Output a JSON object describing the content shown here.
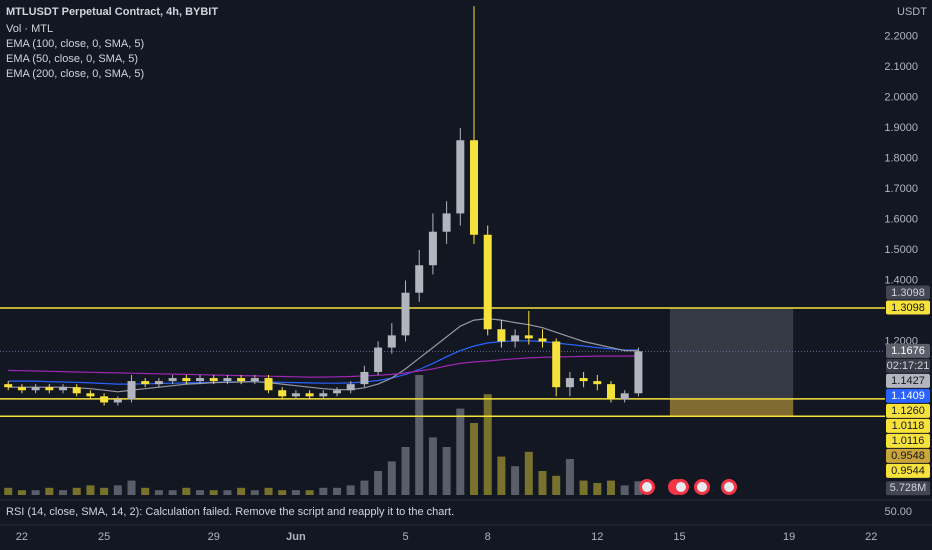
{
  "chart_data": {
    "type": "candlestick",
    "title": "MTLUSDT Perpetual Contract, 4h, BYBIT",
    "unit": "USDT",
    "x": [
      21.5,
      22,
      22.5,
      23,
      23.5,
      24,
      24.5,
      25,
      25.5,
      26,
      26.5,
      27,
      27.5,
      28,
      28.5,
      29,
      29.5,
      30,
      30.5,
      31,
      31.5,
      32,
      32.5,
      33,
      33.5,
      34,
      34.5,
      35,
      35.5,
      36,
      36.5,
      37,
      37.5,
      38,
      38.5,
      39,
      39.5,
      40,
      40.5,
      41,
      41.5,
      42,
      42.5,
      43,
      43.5,
      44,
      44.5
    ],
    "open": [
      1.06,
      1.05,
      1.04,
      1.05,
      1.04,
      1.05,
      1.03,
      1.02,
      1.0,
      1.01,
      1.07,
      1.06,
      1.07,
      1.08,
      1.07,
      1.08,
      1.07,
      1.08,
      1.07,
      1.08,
      1.04,
      1.02,
      1.03,
      1.02,
      1.03,
      1.04,
      1.06,
      1.1,
      1.18,
      1.22,
      1.36,
      1.45,
      1.56,
      1.62,
      1.86,
      1.55,
      1.24,
      1.2,
      1.22,
      1.21,
      1.2,
      1.05,
      1.08,
      1.07,
      1.06,
      1.01,
      1.03
    ],
    "close": [
      1.05,
      1.04,
      1.05,
      1.04,
      1.05,
      1.03,
      1.02,
      1.0,
      1.01,
      1.07,
      1.06,
      1.07,
      1.08,
      1.07,
      1.08,
      1.07,
      1.08,
      1.07,
      1.08,
      1.04,
      1.02,
      1.03,
      1.02,
      1.03,
      1.04,
      1.06,
      1.1,
      1.18,
      1.22,
      1.36,
      1.45,
      1.56,
      1.62,
      1.86,
      1.55,
      1.24,
      1.2,
      1.22,
      1.21,
      1.2,
      1.05,
      1.08,
      1.07,
      1.06,
      1.01,
      1.03,
      1.1676
    ],
    "high": [
      1.07,
      1.06,
      1.06,
      1.06,
      1.06,
      1.06,
      1.04,
      1.03,
      1.02,
      1.09,
      1.08,
      1.08,
      1.09,
      1.09,
      1.09,
      1.09,
      1.09,
      1.09,
      1.09,
      1.09,
      1.05,
      1.04,
      1.04,
      1.04,
      1.05,
      1.07,
      1.12,
      1.2,
      1.26,
      1.4,
      1.5,
      1.62,
      1.66,
      1.9,
      2.3,
      1.58,
      1.27,
      1.24,
      1.3,
      1.24,
      1.21,
      1.1,
      1.1,
      1.09,
      1.07,
      1.04,
      1.18
    ],
    "low": [
      1.04,
      1.03,
      1.03,
      1.03,
      1.03,
      1.02,
      1.01,
      0.99,
      0.99,
      1.0,
      1.05,
      1.05,
      1.06,
      1.06,
      1.06,
      1.06,
      1.06,
      1.06,
      1.06,
      1.03,
      1.01,
      1.01,
      1.01,
      1.01,
      1.02,
      1.03,
      1.05,
      1.09,
      1.16,
      1.2,
      1.33,
      1.42,
      1.52,
      1.58,
      1.52,
      1.22,
      1.18,
      1.18,
      1.19,
      1.18,
      1.02,
      1.02,
      1.05,
      1.04,
      1.0,
      1.0,
      1.02
    ],
    "up_color": "#b2b5be",
    "down_color": "#f7e23c",
    "volume": {
      "name": "Vol · MTL",
      "axis": "y2",
      "values": [
        3,
        2,
        2,
        3,
        2,
        3,
        4,
        3,
        4,
        6,
        3,
        2,
        2,
        3,
        2,
        2,
        2,
        3,
        2,
        3,
        2,
        2,
        2,
        3,
        3,
        4,
        6,
        10,
        14,
        20,
        50,
        24,
        20,
        36,
        30,
        42,
        16,
        12,
        18,
        10,
        8,
        15,
        6,
        5,
        6,
        4,
        5.728
      ]
    },
    "series": [
      {
        "name": "EMA (100, close, 0, SMA, 5)",
        "color": "#2962ff",
        "values": [
          1.07,
          1.07,
          1.07,
          1.068,
          1.067,
          1.066,
          1.064,
          1.062,
          1.06,
          1.06,
          1.061,
          1.062,
          1.063,
          1.064,
          1.065,
          1.066,
          1.067,
          1.068,
          1.068,
          1.067,
          1.066,
          1.065,
          1.064,
          1.063,
          1.063,
          1.064,
          1.067,
          1.072,
          1.08,
          1.092,
          1.108,
          1.128,
          1.15,
          1.17,
          1.185,
          1.195,
          1.2,
          1.202,
          1.202,
          1.2,
          1.195,
          1.19,
          1.185,
          1.18,
          1.176,
          1.172,
          1.172
        ]
      },
      {
        "name": "EMA (50, close, 0, SMA, 5)",
        "color": "#9598a1",
        "values": [
          1.05,
          1.05,
          1.05,
          1.05,
          1.05,
          1.048,
          1.045,
          1.04,
          1.035,
          1.04,
          1.045,
          1.05,
          1.055,
          1.06,
          1.062,
          1.065,
          1.066,
          1.067,
          1.068,
          1.065,
          1.06,
          1.055,
          1.05,
          1.045,
          1.042,
          1.042,
          1.048,
          1.06,
          1.08,
          1.11,
          1.145,
          1.18,
          1.215,
          1.25,
          1.27,
          1.275,
          1.27,
          1.262,
          1.255,
          1.245,
          1.23,
          1.215,
          1.2,
          1.19,
          1.18,
          1.17,
          1.17
        ]
      },
      {
        "name": "EMA (200, close, 0, SMA, 5)",
        "color": "#9c27b0",
        "values": [
          1.105,
          1.104,
          1.103,
          1.102,
          1.101,
          1.1,
          1.099,
          1.098,
          1.097,
          1.096,
          1.095,
          1.094,
          1.093,
          1.092,
          1.091,
          1.09,
          1.089,
          1.088,
          1.087,
          1.086,
          1.085,
          1.084,
          1.083,
          1.083,
          1.084,
          1.085,
          1.087,
          1.089,
          1.092,
          1.097,
          1.103,
          1.11,
          1.12,
          1.128,
          1.133,
          1.136,
          1.14,
          1.143,
          1.146,
          1.148,
          1.149,
          1.15,
          1.151,
          1.152,
          1.152,
          1.152,
          1.153
        ]
      }
    ],
    "xlim": [
      21.2,
      53.5
    ],
    "xticks": [
      22,
      25,
      29,
      {
        "value": 32,
        "label": "Jun"
      },
      {
        "value": 36,
        "label": "5"
      },
      {
        "value": 39,
        "label": "8"
      },
      {
        "value": 43,
        "label": "12"
      },
      {
        "value": 46,
        "label": "15"
      },
      {
        "value": 50,
        "label": "19"
      },
      {
        "value": 53,
        "label": "22"
      }
    ],
    "ylim": [
      0.68,
      2.32
    ],
    "yticks": [
      {
        "value": 2.2,
        "label": "2.2000"
      },
      {
        "value": 2.1,
        "label": "2.1000"
      },
      {
        "value": 2.0,
        "label": "2.0000"
      },
      {
        "value": 1.9,
        "label": "1.9000"
      },
      {
        "value": 1.8,
        "label": "1.8000"
      },
      {
        "value": 1.7,
        "label": "1.7000"
      },
      {
        "value": 1.6,
        "label": "1.6000"
      },
      {
        "value": 1.5,
        "label": "1.5000"
      },
      {
        "value": 1.4,
        "label": "1.4000"
      },
      {
        "value": 1.2,
        "label": "1.2000"
      }
    ],
    "y2lim": [
      0,
      100
    ],
    "levels": [
      {
        "value": 1.3098,
        "color": "#f7e23c"
      },
      {
        "value": 1.0118,
        "color": "#f7e23c"
      },
      {
        "value": 0.9548,
        "color": "#f7e23c"
      }
    ],
    "position": {
      "x": [
        45.65,
        50.15
      ],
      "target": 1.3098,
      "entry": 1.0118,
      "stop": 0.9548
    },
    "price_tags": [
      {
        "value": 1.3098,
        "label": "1.3098",
        "color": "#f7e23c",
        "text_color": "#131722"
      },
      {
        "value": 1.3098,
        "label": "1.3098",
        "color": "#434651",
        "text_color": "#d1d4dc"
      },
      {
        "value": 1.1676,
        "label": "1.1676",
        "color": "#5d606b",
        "text_color": "#ffffff"
      },
      {
        "label": "02:17:21",
        "color": "#3b3e48",
        "text_color": "#d1d4dc"
      },
      {
        "value": 1.1427,
        "label": "1.1427",
        "color": "#b2b5be",
        "text_color": "#131722"
      },
      {
        "value": 1.1409,
        "label": "1.1409",
        "color": "#2962ff",
        "text_color": "#ffffff"
      },
      {
        "value": 1.126,
        "label": "1.1260",
        "color": "#f7e23c",
        "text_color": "#131722"
      },
      {
        "value": 1.0118,
        "label": "1.0118",
        "color": "#f7e23c",
        "text_color": "#131722"
      },
      {
        "value": 1.0116,
        "label": "1.0116",
        "color": "#f7e23c",
        "text_color": "#131722"
      },
      {
        "value": 0.9548,
        "label": "0.9548",
        "color": "#c9a53a",
        "text_color": "#131722"
      },
      {
        "value": 0.9544,
        "label": "0.9544",
        "color": "#f7e23c",
        "text_color": "#131722"
      }
    ],
    "volume_tag": {
      "value": 5.728,
      "label": "5.728M"
    },
    "rsi": {
      "title": "RSI (14, close, SMA, 14, 2): Calculation failed. Remove the script and reapply it to the chart.",
      "ticks": [
        {
          "value": 50,
          "label": "50.00"
        }
      ]
    }
  }
}
